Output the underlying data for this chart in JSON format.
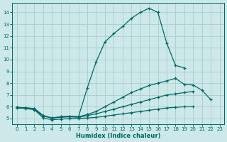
{
  "xlabel": "Humidex (Indice chaleur)",
  "background_color": "#cde8e8",
  "grid_color": "#b0d0d0",
  "line_color": "#006868",
  "xlim": [
    -0.5,
    23.5
  ],
  "ylim": [
    4.5,
    14.8
  ],
  "yticks": [
    5,
    6,
    7,
    8,
    9,
    10,
    11,
    12,
    13,
    14
  ],
  "xticks": [
    0,
    1,
    2,
    3,
    4,
    5,
    6,
    7,
    8,
    9,
    10,
    11,
    12,
    13,
    14,
    15,
    16,
    17,
    18,
    19,
    20,
    21,
    22,
    23
  ],
  "curves": [
    {
      "x": [
        0,
        1,
        2,
        3,
        4,
        5,
        6,
        7,
        8,
        9,
        10,
        11,
        12,
        13,
        14,
        15,
        16,
        17,
        18,
        19,
        20,
        21,
        22,
        23
      ],
      "y": [
        5.9,
        5.85,
        5.75,
        5.05,
        4.9,
        4.95,
        5.0,
        5.0,
        5.05,
        5.1,
        5.2,
        5.3,
        5.4,
        5.5,
        5.6,
        5.7,
        5.8,
        5.9,
        5.95,
        6.0,
        6.0,
        null,
        null,
        null
      ]
    },
    {
      "x": [
        0,
        1,
        2,
        3,
        4,
        5,
        6,
        7,
        8,
        9,
        10,
        11,
        12,
        13,
        14,
        15,
        16,
        17,
        18,
        19,
        20,
        21,
        22,
        23
      ],
      "y": [
        5.95,
        5.9,
        5.8,
        5.2,
        5.05,
        5.1,
        5.15,
        5.1,
        5.25,
        5.4,
        5.6,
        5.8,
        6.0,
        6.2,
        6.4,
        6.6,
        6.8,
        7.0,
        7.1,
        7.2,
        7.3,
        null,
        null,
        null
      ]
    },
    {
      "x": [
        0,
        1,
        2,
        3,
        4,
        5,
        6,
        7,
        8,
        9,
        10,
        11,
        12,
        13,
        14,
        15,
        16,
        17,
        18,
        19,
        20,
        21,
        22,
        23
      ],
      "y": [
        5.95,
        5.9,
        5.85,
        5.25,
        5.05,
        5.15,
        5.2,
        5.15,
        5.35,
        5.6,
        6.0,
        6.4,
        6.8,
        7.2,
        7.5,
        7.8,
        8.0,
        8.2,
        8.4,
        7.9,
        7.85,
        7.4,
        6.6,
        null
      ]
    },
    {
      "x": [
        0,
        1,
        2,
        3,
        4,
        5,
        6,
        7,
        8,
        9,
        10,
        11,
        12,
        13,
        14,
        15,
        16,
        17,
        18,
        19,
        20,
        21,
        22,
        23
      ],
      "y": [
        5.95,
        5.9,
        5.85,
        5.25,
        5.05,
        5.15,
        5.2,
        5.15,
        7.6,
        9.8,
        11.5,
        12.2,
        12.8,
        13.5,
        14.0,
        14.35,
        14.0,
        11.4,
        9.5,
        9.3,
        null,
        null,
        null,
        null
      ]
    }
  ]
}
